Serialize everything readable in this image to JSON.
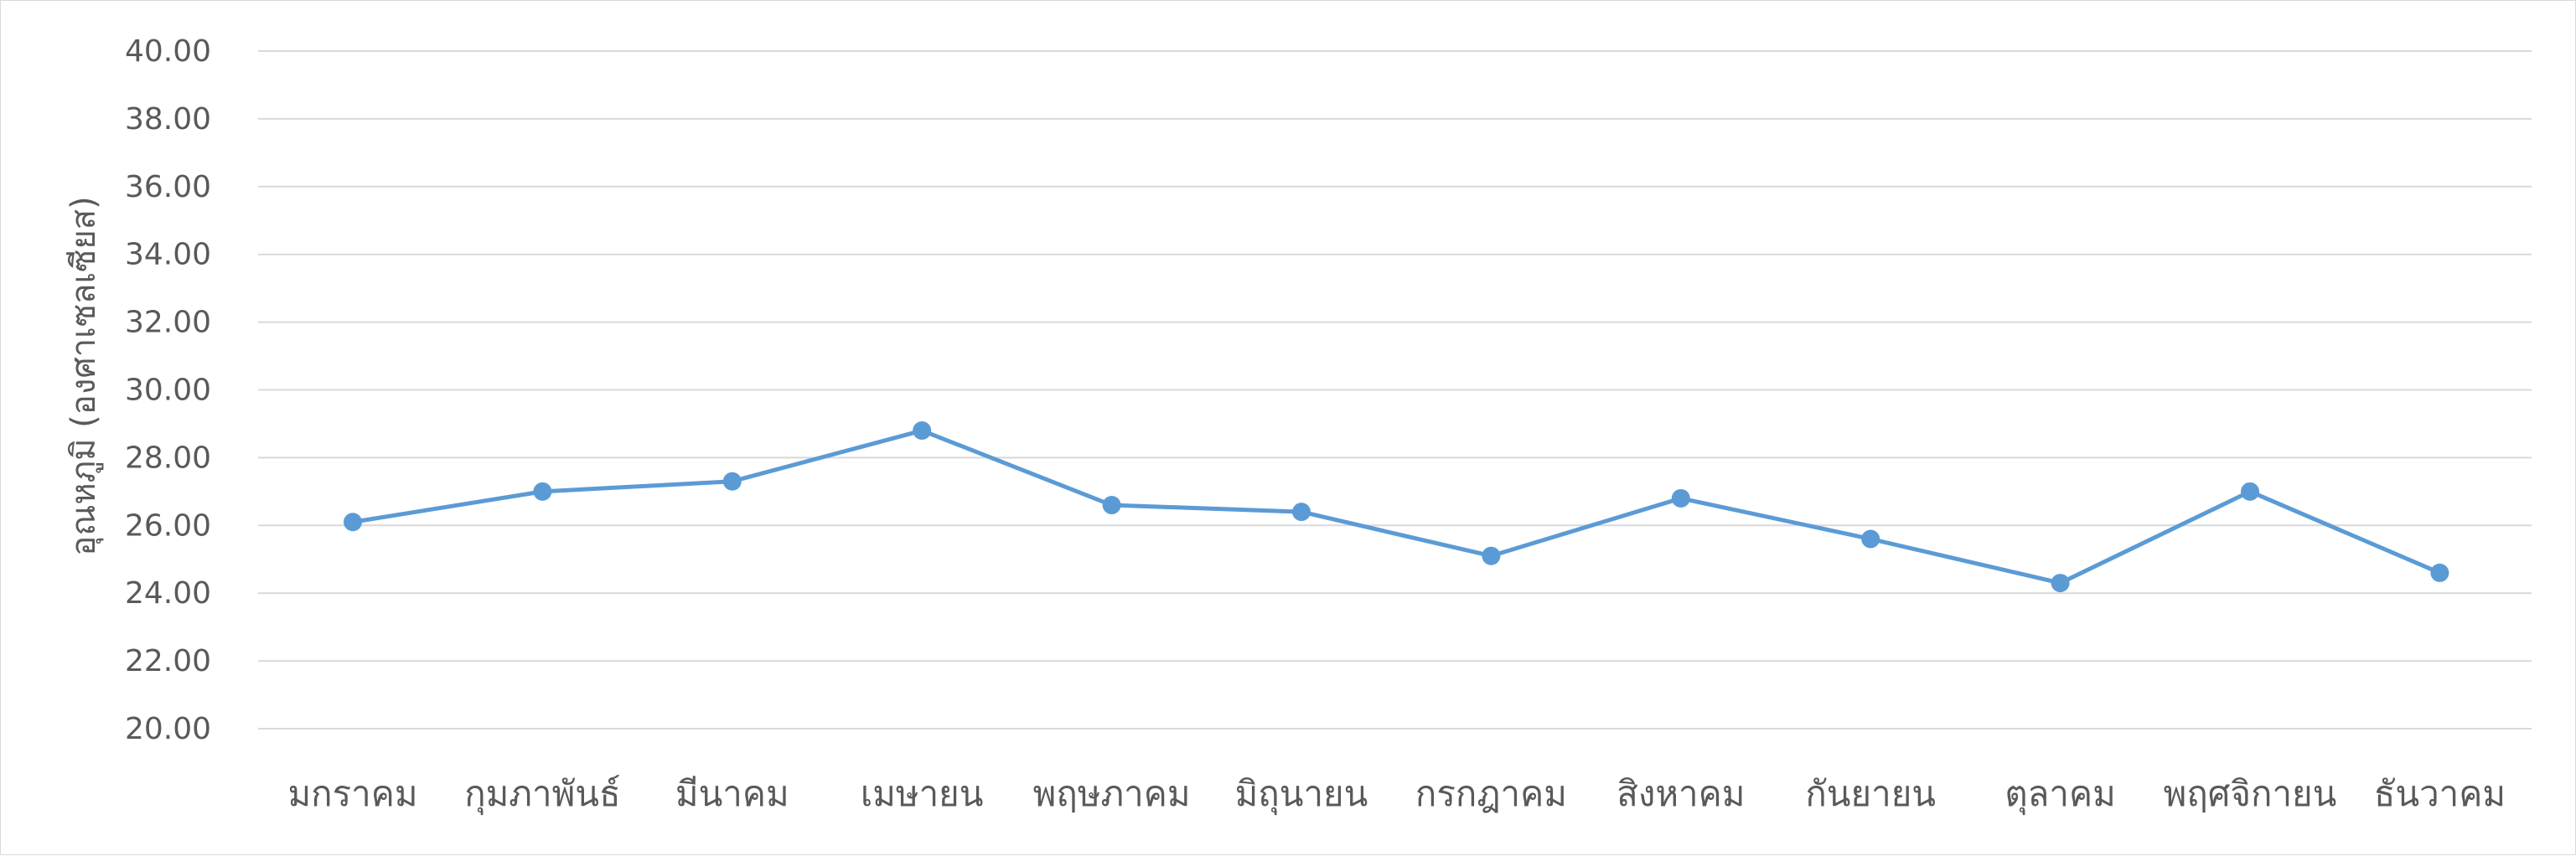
{
  "chart_data": {
    "type": "line",
    "title": "",
    "xlabel": "",
    "ylabel": "อุณหภูมิ (องศาเซลเซียส)",
    "ylim": [
      20,
      40
    ],
    "ytick_step": 2,
    "y_tick_labels": [
      "20.00",
      "22.00",
      "24.00",
      "26.00",
      "28.00",
      "30.00",
      "32.00",
      "34.00",
      "36.00",
      "38.00",
      "40.00"
    ],
    "grid": true,
    "legend": "none",
    "categories": [
      "มกราคม",
      "กุมภาพันธ์",
      "มีนาคม",
      "เมษายน",
      "พฤษภาคม",
      "มิถุนายน",
      "กรกฎาคม",
      "สิงหาคม",
      "กันยายน",
      "ตุลาคม",
      "พฤศจิกายน",
      "ธันวาคม"
    ],
    "series": [
      {
        "values": [
          26.1,
          27.0,
          27.3,
          28.8,
          26.6,
          26.4,
          25.1,
          26.8,
          25.6,
          24.3,
          27.0,
          24.6
        ],
        "color": "#5b9bd5"
      }
    ],
    "colors": {
      "grid": "#d9d9d9",
      "text": "#595959",
      "border": "#d9d9d9"
    }
  }
}
